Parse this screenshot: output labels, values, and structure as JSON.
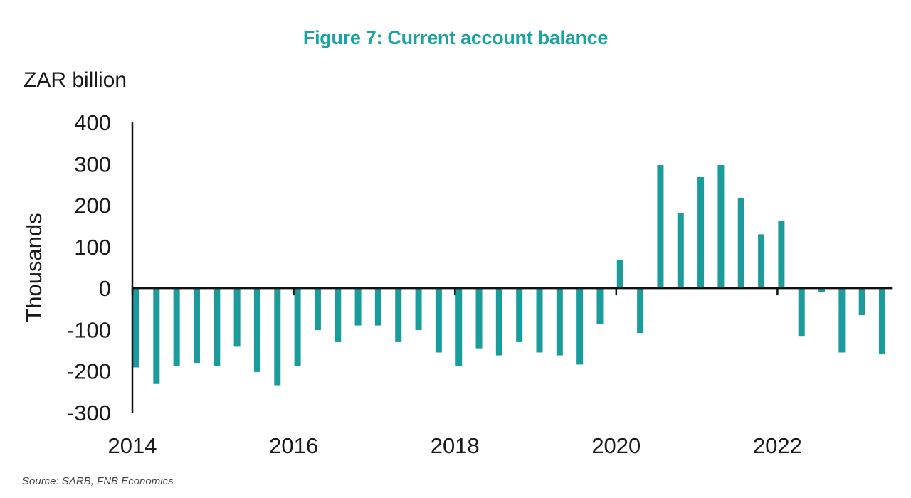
{
  "chart_data": {
    "type": "bar",
    "title": "Figure 7: Current account balance",
    "unit_label": "ZAR billion",
    "ylabel": "Thousands",
    "xlabel": "",
    "ylim": [
      -300,
      400
    ],
    "yticks": [
      400,
      300,
      200,
      100,
      0,
      -100,
      -200,
      -300
    ],
    "xtick_labels": [
      "2014",
      "2016",
      "2018",
      "2020",
      "2022"
    ],
    "x_start": 2014.0,
    "x_step": 0.25,
    "grid": false,
    "legend": "none",
    "color": "#1a9c9c",
    "categories": [
      "2014Q1",
      "2014Q2",
      "2014Q3",
      "2014Q4",
      "2015Q1",
      "2015Q2",
      "2015Q3",
      "2015Q4",
      "2016Q1",
      "2016Q2",
      "2016Q3",
      "2016Q4",
      "2017Q1",
      "2017Q2",
      "2017Q3",
      "2017Q4",
      "2018Q1",
      "2018Q2",
      "2018Q3",
      "2018Q4",
      "2019Q1",
      "2019Q2",
      "2019Q3",
      "2019Q4",
      "2020Q1",
      "2020Q2",
      "2020Q3",
      "2020Q4",
      "2021Q1",
      "2021Q2",
      "2021Q3",
      "2021Q4",
      "2022Q1",
      "2022Q2",
      "2022Q3",
      "2022Q4",
      "2023Q1",
      "2023Q2"
    ],
    "values": [
      -191,
      -231,
      -188,
      -180,
      -188,
      -141,
      -202,
      -234,
      -188,
      -101,
      -130,
      -90,
      -90,
      -130,
      -101,
      -155,
      -188,
      -145,
      -162,
      -130,
      -155,
      -162,
      -184,
      -86,
      69,
      -108,
      297,
      181,
      268,
      297,
      217,
      130,
      163,
      -115,
      -10,
      -155,
      -65,
      -158
    ]
  },
  "source": "Source: SARB, FNB Economics"
}
